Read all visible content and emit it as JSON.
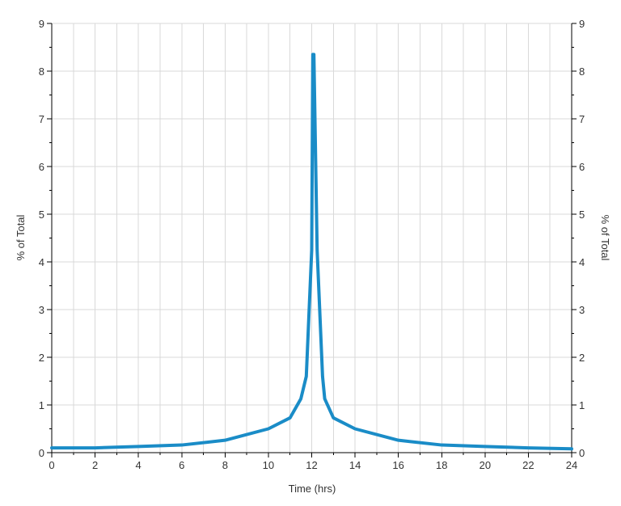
{
  "chart_data": {
    "type": "line",
    "xlabel": "Time (hrs)",
    "ylabel_left": "% of Total",
    "ylabel_right": "% of Total",
    "xlim": [
      0,
      24
    ],
    "ylim": [
      0,
      9
    ],
    "x_major_ticks": [
      0,
      2,
      4,
      6,
      8,
      10,
      12,
      14,
      16,
      18,
      20,
      22,
      24
    ],
    "y_major_ticks": [
      0,
      1,
      2,
      3,
      4,
      5,
      6,
      7,
      8,
      9
    ],
    "grid": true,
    "line_color": "#1a8cc7",
    "series": [
      {
        "x": [
          0,
          2,
          4,
          6,
          8,
          10,
          11,
          11.5,
          11.75,
          12,
          12.05,
          12.1,
          12.25,
          12.5,
          12.6,
          13,
          14,
          16,
          18,
          20,
          22,
          24
        ],
        "y": [
          0.1,
          0.1,
          0.13,
          0.16,
          0.26,
          0.5,
          0.73,
          1.13,
          1.6,
          4.25,
          8.35,
          8.35,
          4.25,
          1.6,
          1.13,
          0.73,
          0.5,
          0.26,
          0.16,
          0.13,
          0.1,
          0.08
        ]
      }
    ]
  }
}
